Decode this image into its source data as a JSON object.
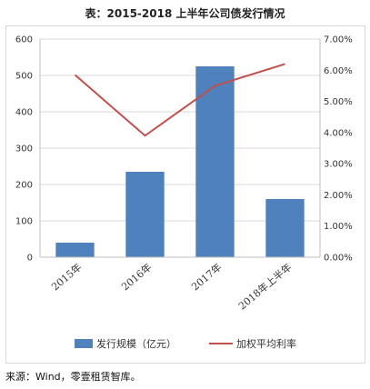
{
  "title": "表：2015-2018 上半年公司债发行情况",
  "source": "来源：Wind，零壹租赁智库。",
  "chart_data": {
    "type": "bar",
    "categories": [
      "2015年",
      "2016年",
      "2017年",
      "2018年上半年"
    ],
    "series": [
      {
        "name": "发行规模（亿元）",
        "type": "bar",
        "axis": "left",
        "color": "#4f81bd",
        "values": [
          40,
          235,
          525,
          160
        ]
      },
      {
        "name": "加权平均利率",
        "type": "line",
        "axis": "right",
        "color": "#c0504d",
        "values": [
          5.85,
          3.9,
          5.5,
          6.2
        ]
      }
    ],
    "y_left": {
      "ylim": [
        0,
        600
      ],
      "ticks": [
        {
          "v": 0,
          "label": "0"
        },
        {
          "v": 100,
          "label": "100"
        },
        {
          "v": 200,
          "label": "200"
        },
        {
          "v": 300,
          "label": "300"
        },
        {
          "v": 400,
          "label": "400"
        },
        {
          "v": 500,
          "label": "500"
        },
        {
          "v": 600,
          "label": "600"
        }
      ]
    },
    "y_right": {
      "ylim": [
        0,
        7
      ],
      "ticks": [
        {
          "v": 0,
          "label": "0.00%"
        },
        {
          "v": 1,
          "label": "1.00%"
        },
        {
          "v": 2,
          "label": "2.00%"
        },
        {
          "v": 3,
          "label": "3.00%"
        },
        {
          "v": 4,
          "label": "4.00%"
        },
        {
          "v": 5,
          "label": "5.00%"
        },
        {
          "v": 6,
          "label": "6.00%"
        },
        {
          "v": 7,
          "label": "7.00%"
        }
      ]
    },
    "grid": true,
    "legend": "bottom"
  }
}
